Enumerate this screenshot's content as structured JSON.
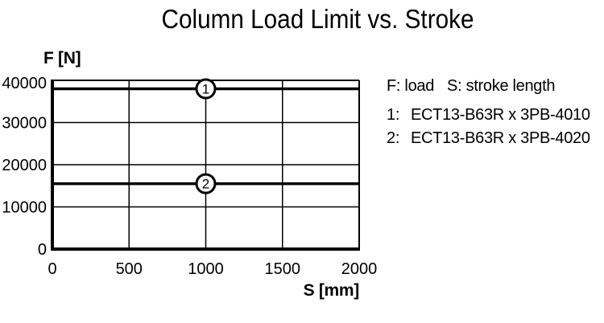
{
  "title": "Column Load Limit vs. Stroke",
  "chart_data": {
    "type": "line",
    "title": "Column Load Limit vs. Stroke",
    "xlabel": "S [mm]",
    "ylabel": "F [N]",
    "xlim": [
      0,
      2000
    ],
    "ylim": [
      0,
      40000
    ],
    "x_ticks": [
      0,
      500,
      1000,
      1500,
      2000
    ],
    "y_ticks": [
      0,
      10000,
      20000,
      30000,
      40000
    ],
    "grid": true,
    "legend_position": "right",
    "series": [
      {
        "marker": "1",
        "name": "ECT13-B63R x 3PB-4010",
        "y": 38000,
        "x_range": [
          0,
          2000
        ],
        "marker_x": 1000
      },
      {
        "marker": "2",
        "name": "ECT13-B63R x 3PB-4020",
        "y": 15500,
        "x_range": [
          0,
          2000
        ],
        "marker_x": 1000
      }
    ]
  },
  "legend": {
    "f_label": "F: load",
    "s_label": "S: stroke length",
    "items": [
      {
        "num": "1:",
        "label": "ECT13-B63R x 3PB-4010"
      },
      {
        "num": "2:",
        "label": "ECT13-B63R x 3PB-4020"
      }
    ]
  },
  "colors": {
    "foreground": "#000000",
    "background": "#ffffff"
  }
}
